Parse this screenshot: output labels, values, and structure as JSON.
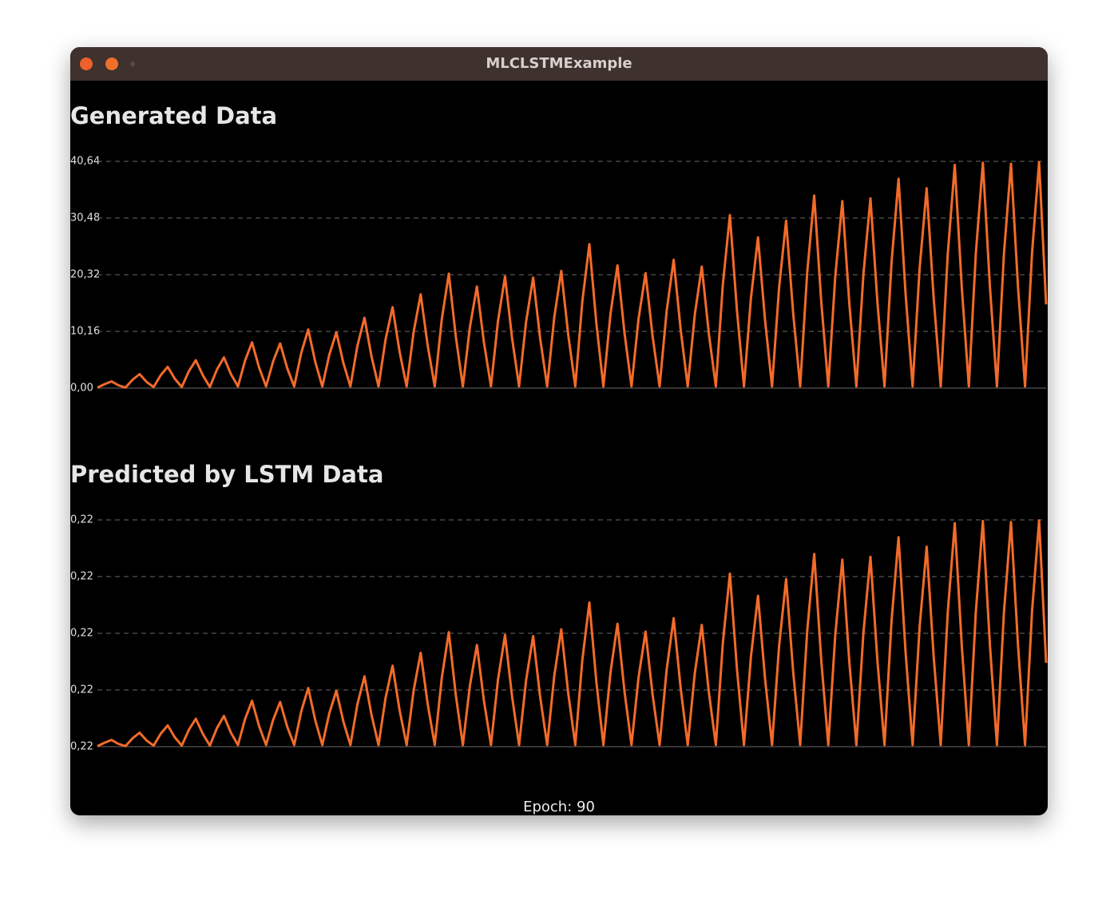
{
  "window_title": "MLCLSTMExample",
  "status": "Epoch: 90",
  "chart_data": [
    {
      "type": "line",
      "title": "Generated Data",
      "grid": true,
      "ylim": [
        0,
        40.64
      ],
      "yticks": [
        {
          "value": 0,
          "label": "0,00"
        },
        {
          "value": 10.16,
          "label": "10,16"
        },
        {
          "value": 20.32,
          "label": "20,32"
        },
        {
          "value": 30.48,
          "label": "30,48"
        },
        {
          "value": 40.64,
          "label": "40,64"
        }
      ],
      "series": [
        {
          "color": "#f26b2a",
          "values": [
            0.1,
            0.7,
            1.2,
            0.5,
            0.1,
            1.5,
            2.5,
            1.1,
            0.2,
            2.3,
            3.8,
            1.7,
            0.2,
            3.0,
            5.0,
            2.3,
            0.2,
            3.3,
            5.5,
            2.5,
            0.3,
            4.9,
            8.2,
            3.7,
            0.3,
            4.8,
            8.0,
            3.6,
            0.3,
            6.3,
            10.5,
            4.7,
            0.3,
            6.0,
            10.0,
            4.5,
            0.3,
            7.6,
            12.6,
            5.7,
            0.3,
            8.7,
            14.5,
            6.5,
            0.3,
            10.1,
            16.8,
            7.6,
            0.3,
            12.3,
            20.5,
            9.2,
            0.3,
            10.9,
            18.2,
            8.2,
            0.3,
            12.0,
            20.0,
            9.0,
            0.3,
            11.9,
            19.8,
            8.9,
            0.3,
            12.6,
            21.0,
            9.5,
            0.3,
            15.5,
            25.8,
            11.6,
            0.3,
            13.2,
            22.0,
            9.9,
            0.3,
            12.4,
            20.6,
            9.3,
            0.3,
            13.8,
            23.0,
            10.4,
            0.3,
            13.1,
            21.8,
            9.8,
            0.3,
            18.6,
            31.0,
            14.0,
            0.3,
            16.2,
            27.0,
            12.2,
            0.3,
            18.0,
            30.0,
            13.5,
            0.3,
            20.7,
            34.5,
            15.5,
            0.3,
            20.1,
            33.5,
            15.1,
            0.3,
            20.4,
            34.0,
            15.3,
            0.3,
            22.5,
            37.5,
            16.9,
            0.3,
            21.5,
            35.8,
            16.1,
            0.3,
            24.0,
            40.0,
            18.0,
            0.3,
            24.2,
            40.4,
            18.2,
            0.3,
            24.1,
            40.2,
            18.1,
            0.3,
            24.3,
            40.5,
            15.0
          ]
        }
      ]
    },
    {
      "type": "line",
      "title": "Predicted by LSTM Data",
      "grid": true,
      "ylim": [
        0.22,
        0.22406
      ],
      "yticks": [
        {
          "value": 0.22,
          "label": "0,22"
        },
        {
          "value": 0.221015,
          "label": "0,22"
        },
        {
          "value": 0.22203,
          "label": "0,22"
        },
        {
          "value": 0.223045,
          "label": "0,22"
        },
        {
          "value": 0.22406,
          "label": "0,22"
        }
      ],
      "series": [
        {
          "color": "#f26b2a",
          "values": [
            0.22001,
            0.22007,
            0.22012,
            0.22005,
            0.22001,
            0.22015,
            0.22025,
            0.22011,
            0.22002,
            0.22023,
            0.22038,
            0.22017,
            0.22002,
            0.2203,
            0.2205,
            0.22023,
            0.22002,
            0.22033,
            0.22055,
            0.22025,
            0.22003,
            0.22049,
            0.22082,
            0.22037,
            0.22003,
            0.22048,
            0.2208,
            0.22036,
            0.22003,
            0.22063,
            0.22105,
            0.22047,
            0.22003,
            0.2206,
            0.221,
            0.22045,
            0.22003,
            0.22076,
            0.22126,
            0.22057,
            0.22003,
            0.22087,
            0.22145,
            0.22065,
            0.22003,
            0.22101,
            0.22168,
            0.22076,
            0.22003,
            0.22123,
            0.22205,
            0.22092,
            0.22003,
            0.22109,
            0.22182,
            0.22082,
            0.22003,
            0.2212,
            0.222,
            0.2209,
            0.22003,
            0.22119,
            0.22198,
            0.22089,
            0.22003,
            0.22126,
            0.2221,
            0.22095,
            0.22003,
            0.22155,
            0.22258,
            0.22116,
            0.22003,
            0.22132,
            0.2222,
            0.22099,
            0.22003,
            0.22124,
            0.22206,
            0.22093,
            0.22003,
            0.22138,
            0.2223,
            0.22104,
            0.22003,
            0.22131,
            0.22218,
            0.22098,
            0.22003,
            0.22186,
            0.2231,
            0.2214,
            0.22003,
            0.22162,
            0.2227,
            0.22122,
            0.22003,
            0.2218,
            0.223,
            0.22135,
            0.22003,
            0.22207,
            0.22345,
            0.22155,
            0.22003,
            0.22201,
            0.22335,
            0.22151,
            0.22003,
            0.22204,
            0.2234,
            0.22153,
            0.22003,
            0.22225,
            0.22375,
            0.22169,
            0.22003,
            0.22215,
            0.22358,
            0.22161,
            0.22003,
            0.2224,
            0.224,
            0.2218,
            0.22003,
            0.22242,
            0.22404,
            0.22182,
            0.22003,
            0.22241,
            0.22402,
            0.22181,
            0.22003,
            0.22243,
            0.22405,
            0.2215
          ]
        }
      ]
    }
  ]
}
